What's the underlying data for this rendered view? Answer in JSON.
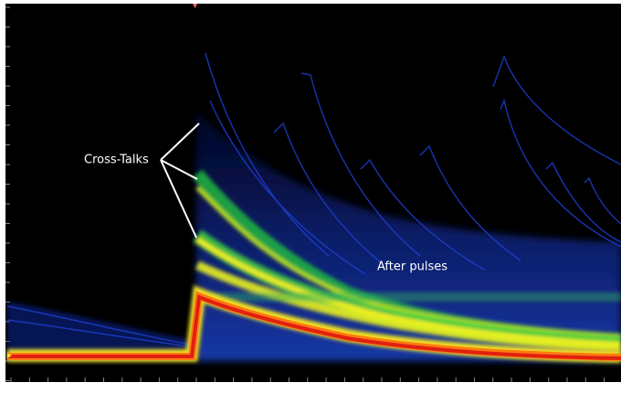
{
  "annotations": {
    "cross_talks": "Cross-Talks",
    "after_pulses": "After pulses"
  }
}
